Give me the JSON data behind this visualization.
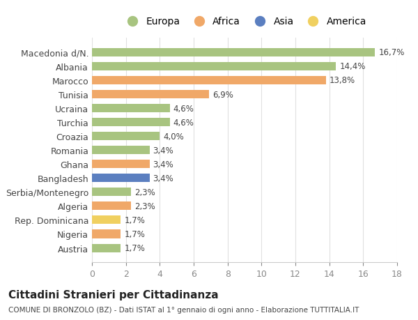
{
  "countries": [
    "Macedonia d/N.",
    "Albania",
    "Marocco",
    "Tunisia",
    "Ucraina",
    "Turchia",
    "Croazia",
    "Romania",
    "Ghana",
    "Bangladesh",
    "Serbia/Montenegro",
    "Algeria",
    "Rep. Dominicana",
    "Nigeria",
    "Austria"
  ],
  "values": [
    16.7,
    14.4,
    13.8,
    6.9,
    4.6,
    4.6,
    4.0,
    3.4,
    3.4,
    3.4,
    2.3,
    2.3,
    1.7,
    1.7,
    1.7
  ],
  "labels": [
    "16,7%",
    "14,4%",
    "13,8%",
    "6,9%",
    "4,6%",
    "4,6%",
    "4,0%",
    "3,4%",
    "3,4%",
    "3,4%",
    "2,3%",
    "2,3%",
    "1,7%",
    "1,7%",
    "1,7%"
  ],
  "continents": [
    "Europa",
    "Europa",
    "Africa",
    "Africa",
    "Europa",
    "Europa",
    "Europa",
    "Europa",
    "Africa",
    "Asia",
    "Europa",
    "Africa",
    "America",
    "Africa",
    "Europa"
  ],
  "colors": {
    "Europa": "#a8c480",
    "Africa": "#f0a868",
    "Asia": "#5b7fc0",
    "America": "#f0d060"
  },
  "legend_order": [
    "Europa",
    "Africa",
    "Asia",
    "America"
  ],
  "title": "Cittadini Stranieri per Cittadinanza",
  "subtitle": "COMUNE DI BRONZOLO (BZ) - Dati ISTAT al 1° gennaio di ogni anno - Elaborazione TUTTITALIA.IT",
  "xlim": [
    0,
    18
  ],
  "xticks": [
    0,
    2,
    4,
    6,
    8,
    10,
    12,
    14,
    16,
    18
  ],
  "bg_color": "#ffffff",
  "grid_color": "#e0e0e0"
}
